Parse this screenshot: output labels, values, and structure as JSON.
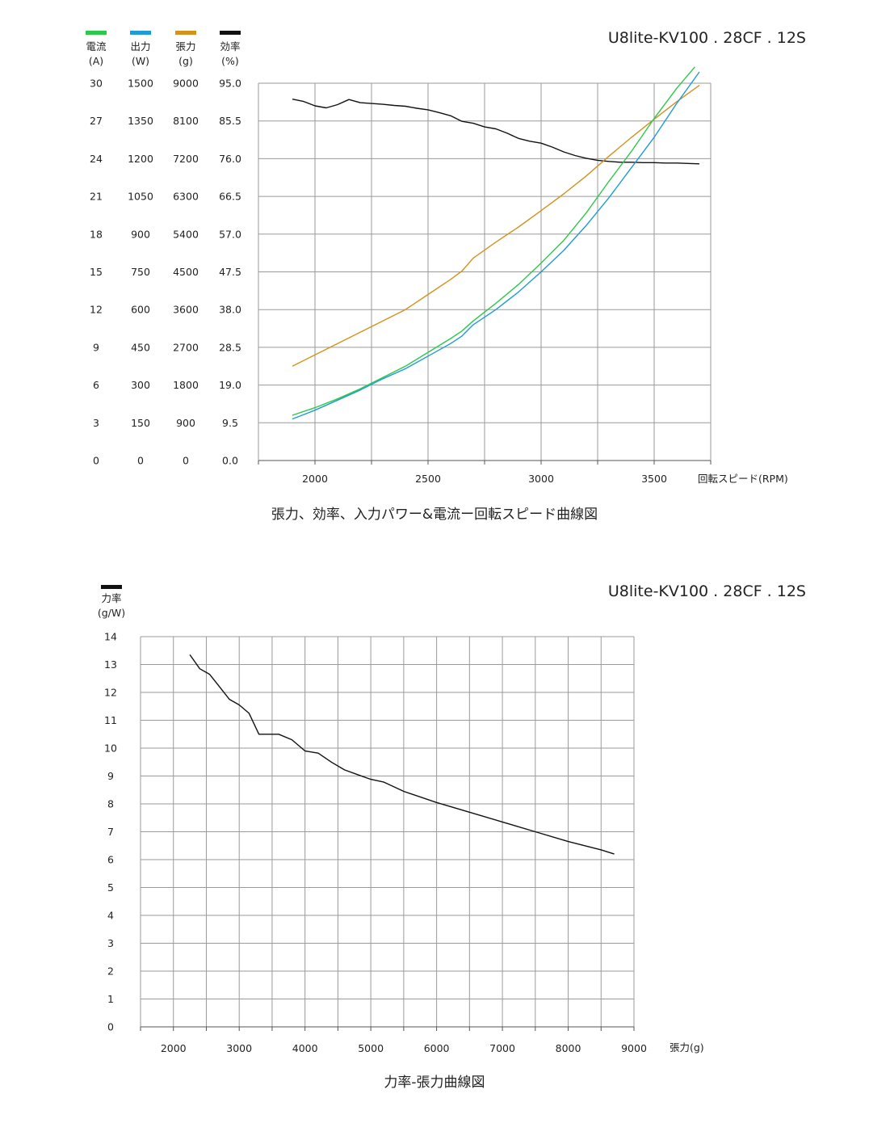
{
  "charts": [
    {
      "model_label": "U8lite-KV100 . 28CF . 12S",
      "caption": "張力、効率、入力パワー&電流ー回転スピード曲線図",
      "x_label": "回転スピード(RPM)",
      "x_ticks": [
        "2000",
        "2500",
        "3000",
        "3500"
      ],
      "legend": [
        {
          "key": "current",
          "name": "電流",
          "unit": "(A)",
          "color": "#2cc84a"
        },
        {
          "key": "power",
          "name": "出力",
          "unit": "(W)",
          "color": "#1f9bd8"
        },
        {
          "key": "thrust",
          "name": "張力",
          "unit": "(g)",
          "color": "#d4911c"
        },
        {
          "key": "efficiency",
          "name": "効率",
          "unit": "(%)",
          "color": "#111111"
        }
      ],
      "y_columns": [
        [
          "0",
          "3",
          "6",
          "9",
          "12",
          "15",
          "18",
          "21",
          "24",
          "27",
          "30"
        ],
        [
          "0",
          "150",
          "300",
          "450",
          "600",
          "750",
          "900",
          "1050",
          "1200",
          "1350",
          "1500"
        ],
        [
          "0",
          "900",
          "1800",
          "2700",
          "3600",
          "4500",
          "5400",
          "6300",
          "7200",
          "8100",
          "9000"
        ],
        [
          "0.0",
          "9.5",
          "19.0",
          "28.5",
          "38.0",
          "47.5",
          "57.0",
          "66.5",
          "76.0",
          "85.5",
          "95.0"
        ]
      ]
    },
    {
      "model_label": "U8lite-KV100 . 28CF . 12S",
      "caption": "力率-張力曲線図",
      "x_label": "張力(g)",
      "x_ticks": [
        "2000",
        "3000",
        "4000",
        "5000",
        "6000",
        "7000",
        "8000",
        "9000"
      ],
      "legend": [
        {
          "key": "force_ratio",
          "name": "力率",
          "unit": "(g/W)",
          "color": "#111111"
        }
      ],
      "y_ticks": [
        "0",
        "1",
        "2",
        "3",
        "4",
        "5",
        "6",
        "7",
        "8",
        "9",
        "10",
        "11",
        "12",
        "13",
        "14"
      ]
    }
  ],
  "chart_data": [
    {
      "type": "line",
      "x_unit": "RPM",
      "xlim": [
        1750,
        3750
      ],
      "series": [
        {
          "name": "効率",
          "unit": "%",
          "color": "#111111",
          "ylim": [
            0,
            95
          ],
          "x": [
            1900,
            1950,
            2000,
            2050,
            2100,
            2150,
            2200,
            2250,
            2300,
            2350,
            2400,
            2450,
            2500,
            2550,
            2600,
            2650,
            2700,
            2750,
            2800,
            2850,
            2900,
            2950,
            3000,
            3050,
            3100,
            3150,
            3200,
            3250,
            3300,
            3350,
            3400,
            3450,
            3500,
            3550,
            3600,
            3650,
            3700
          ],
          "y": [
            91,
            90.4,
            89.3,
            88.8,
            89.6,
            90.9,
            90.1,
            89.9,
            89.7,
            89.4,
            89.2,
            88.7,
            88.3,
            87.6,
            86.8,
            85.4,
            84.9,
            84,
            83.5,
            82.4,
            81.1,
            80.4,
            79.9,
            78.9,
            77.7,
            76.8,
            76.1,
            75.6,
            75.3,
            75.1,
            75.1,
            75.0,
            75.0,
            74.9,
            74.9,
            74.8,
            74.7
          ]
        },
        {
          "name": "張力",
          "unit": "g",
          "color": "#d4911c",
          "ylim": [
            0,
            9000
          ],
          "x": [
            1900,
            2000,
            2100,
            2200,
            2300,
            2400,
            2500,
            2600,
            2650,
            2700,
            2800,
            2900,
            3000,
            3100,
            3200,
            3300,
            3400,
            3500,
            3600,
            3700
          ],
          "y": [
            2250,
            2520,
            2790,
            3060,
            3330,
            3600,
            3960,
            4320,
            4520,
            4830,
            5210,
            5570,
            5960,
            6360,
            6790,
            7260,
            7710,
            8140,
            8560,
            8950
          ]
        },
        {
          "name": "電流",
          "unit": "A",
          "color": "#2cc84a",
          "ylim": [
            0,
            30
          ],
          "x": [
            1900,
            2000,
            2100,
            2200,
            2300,
            2400,
            2500,
            2600,
            2650,
            2700,
            2800,
            2900,
            3000,
            3100,
            3200,
            3300,
            3400,
            3500,
            3600,
            3680
          ],
          "y": [
            3.6,
            4.2,
            4.9,
            5.7,
            6.6,
            7.5,
            8.6,
            9.7,
            10.3,
            11.1,
            12.5,
            14.0,
            15.7,
            17.5,
            19.7,
            22.2,
            24.6,
            27.2,
            29.6,
            31.3
          ]
        },
        {
          "name": "出力",
          "unit": "W",
          "color": "#1f9bd8",
          "ylim": [
            0,
            1500
          ],
          "x": [
            1900,
            2000,
            2100,
            2200,
            2300,
            2400,
            2500,
            2600,
            2650,
            2700,
            2800,
            2900,
            3000,
            3100,
            3200,
            3300,
            3400,
            3500,
            3600,
            3700
          ],
          "y": [
            165,
            200,
            240,
            280,
            325,
            365,
            415,
            465,
            495,
            540,
            600,
            670,
            750,
            835,
            935,
            1045,
            1165,
            1285,
            1420,
            1545
          ]
        }
      ]
    },
    {
      "type": "line",
      "x_unit": "g",
      "xlim": [
        1500,
        9000
      ],
      "ylim": [
        0,
        14
      ],
      "series": [
        {
          "name": "力率",
          "unit": "g/W",
          "color": "#111111",
          "x": [
            2250,
            2400,
            2550,
            2700,
            2850,
            3000,
            3150,
            3300,
            3600,
            3800,
            4000,
            4200,
            4400,
            4600,
            4800,
            5000,
            5200,
            5500,
            6000,
            6500,
            7000,
            7500,
            8000,
            8500,
            8700
          ],
          "y": [
            13.35,
            12.85,
            12.65,
            12.2,
            11.75,
            11.55,
            11.25,
            10.5,
            10.5,
            10.3,
            9.9,
            9.82,
            9.5,
            9.22,
            9.05,
            8.88,
            8.78,
            8.45,
            8.05,
            7.7,
            7.35,
            7.0,
            6.65,
            6.35,
            6.2
          ]
        }
      ]
    }
  ]
}
